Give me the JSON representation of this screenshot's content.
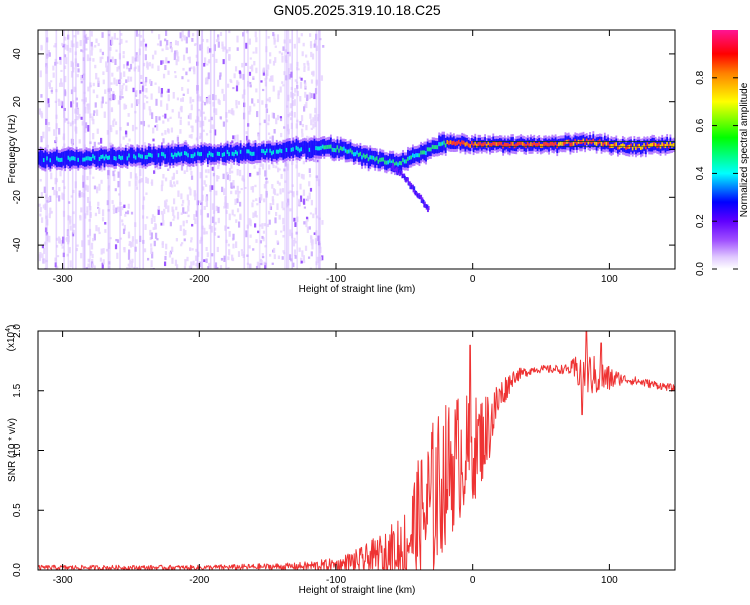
{
  "figure_title": "GN05.2025.319.10.18.C25",
  "chart_data": [
    {
      "type": "heatmap",
      "title": "GN05.2025.319.10.18.C25",
      "xlabel": "Height of straight line (km)",
      "ylabel": "Frequency (Hz)",
      "xlim": [
        -318,
        148
      ],
      "ylim": [
        -50,
        50
      ],
      "x_ticks": [
        -300,
        -200,
        -100,
        0,
        100
      ],
      "x_tick_labels": [
        "-300",
        "-200",
        "-100",
        "0",
        "100"
      ],
      "y_ticks": [
        -40,
        -20,
        0,
        20,
        40
      ],
      "y_tick_labels": [
        "-40",
        "-20",
        "0",
        "20",
        "40"
      ],
      "ridge_center_hz": [
        {
          "x": -318,
          "y": -4
        },
        {
          "x": -250,
          "y": -3
        },
        {
          "x": -200,
          "y": -2
        },
        {
          "x": -150,
          "y": -1
        },
        {
          "x": -110,
          "y": 1
        },
        {
          "x": -95,
          "y": 0
        },
        {
          "x": -80,
          "y": -3
        },
        {
          "x": -65,
          "y": -5
        },
        {
          "x": -55,
          "y": -6
        },
        {
          "x": -45,
          "y": -3
        },
        {
          "x": -35,
          "y": -1
        },
        {
          "x": -25,
          "y": 2
        },
        {
          "x": -15,
          "y": 3
        },
        {
          "x": 0,
          "y": 2
        },
        {
          "x": 60,
          "y": 2
        },
        {
          "x": 75,
          "y": 3
        },
        {
          "x": 90,
          "y": 3
        },
        {
          "x": 110,
          "y": 1
        },
        {
          "x": 148,
          "y": 2
        }
      ],
      "tail_branch_hz": [
        {
          "x": -60,
          "y": -7
        },
        {
          "x": -50,
          "y": -12
        },
        {
          "x": -42,
          "y": -18
        },
        {
          "x": -33,
          "y": -25
        }
      ],
      "noise_region_x": [
        -318,
        -110
      ],
      "colorbar": {
        "label": "Normalized spectral amplitude",
        "range": [
          0,
          1
        ],
        "ticks": [
          0.0,
          0.2,
          0.4,
          0.6,
          0.8
        ],
        "tick_labels": [
          "0.0",
          "0.2",
          "0.4",
          "0.6",
          "0.8"
        ],
        "colors": [
          "#ffffff",
          "#d8b8ff",
          "#8000ff",
          "#0000ff",
          "#00ffff",
          "#00ff00",
          "#ffff00",
          "#ff8000",
          "#ff0000",
          "#ff0080"
        ]
      }
    },
    {
      "type": "line",
      "xlabel": "Height of straight line (km)",
      "ylabel": "SNR (10 * v/v)",
      "multiplier_label": "(x10",
      "multiplier_exponent": "4",
      "xlim": [
        -318,
        148
      ],
      "ylim": [
        0,
        2.0
      ],
      "x_ticks": [
        -300,
        -200,
        -100,
        0,
        100
      ],
      "x_tick_labels": [
        "-300",
        "-200",
        "-100",
        "0",
        "100"
      ],
      "y_ticks": [
        0,
        0.5,
        1.0,
        1.5,
        2.0
      ],
      "y_tick_labels": [
        "0.0",
        "0.5",
        "1.0",
        "1.5",
        "2.0"
      ],
      "color": "#ee3333",
      "series": [
        {
          "name": "SNR",
          "envelope": [
            {
              "x": -318,
              "mean": 0.02,
              "amp": 0.02
            },
            {
              "x": -200,
              "mean": 0.02,
              "amp": 0.02
            },
            {
              "x": -130,
              "mean": 0.03,
              "amp": 0.03
            },
            {
              "x": -100,
              "mean": 0.04,
              "amp": 0.06
            },
            {
              "x": -80,
              "mean": 0.08,
              "amp": 0.12
            },
            {
              "x": -60,
              "mean": 0.15,
              "amp": 0.22
            },
            {
              "x": -45,
              "mean": 0.3,
              "amp": 0.45
            },
            {
              "x": -30,
              "mean": 0.55,
              "amp": 0.7
            },
            {
              "x": -20,
              "mean": 0.8,
              "amp": 0.6
            },
            {
              "x": -10,
              "mean": 0.95,
              "amp": 0.55
            },
            {
              "x": 0,
              "mean": 1.0,
              "amp": 0.45
            },
            {
              "x": 10,
              "mean": 1.15,
              "amp": 0.35
            },
            {
              "x": 20,
              "mean": 1.45,
              "amp": 0.15
            },
            {
              "x": 30,
              "mean": 1.62,
              "amp": 0.06
            },
            {
              "x": 45,
              "mean": 1.68,
              "amp": 0.03
            },
            {
              "x": 70,
              "mean": 1.68,
              "amp": 0.04
            },
            {
              "x": 80,
              "mean": 1.66,
              "amp": 0.2
            },
            {
              "x": 95,
              "mean": 1.6,
              "amp": 0.15
            },
            {
              "x": 110,
              "mean": 1.6,
              "amp": 0.04
            },
            {
              "x": 148,
              "mean": 1.52,
              "amp": 0.03
            }
          ],
          "peaks": [
            {
              "x": -2,
              "y": 1.88
            },
            {
              "x": 83,
              "y": 2.0
            },
            {
              "x": 94,
              "y": 1.9
            },
            {
              "x": 80,
              "y": 1.3
            }
          ]
        }
      ]
    }
  ]
}
